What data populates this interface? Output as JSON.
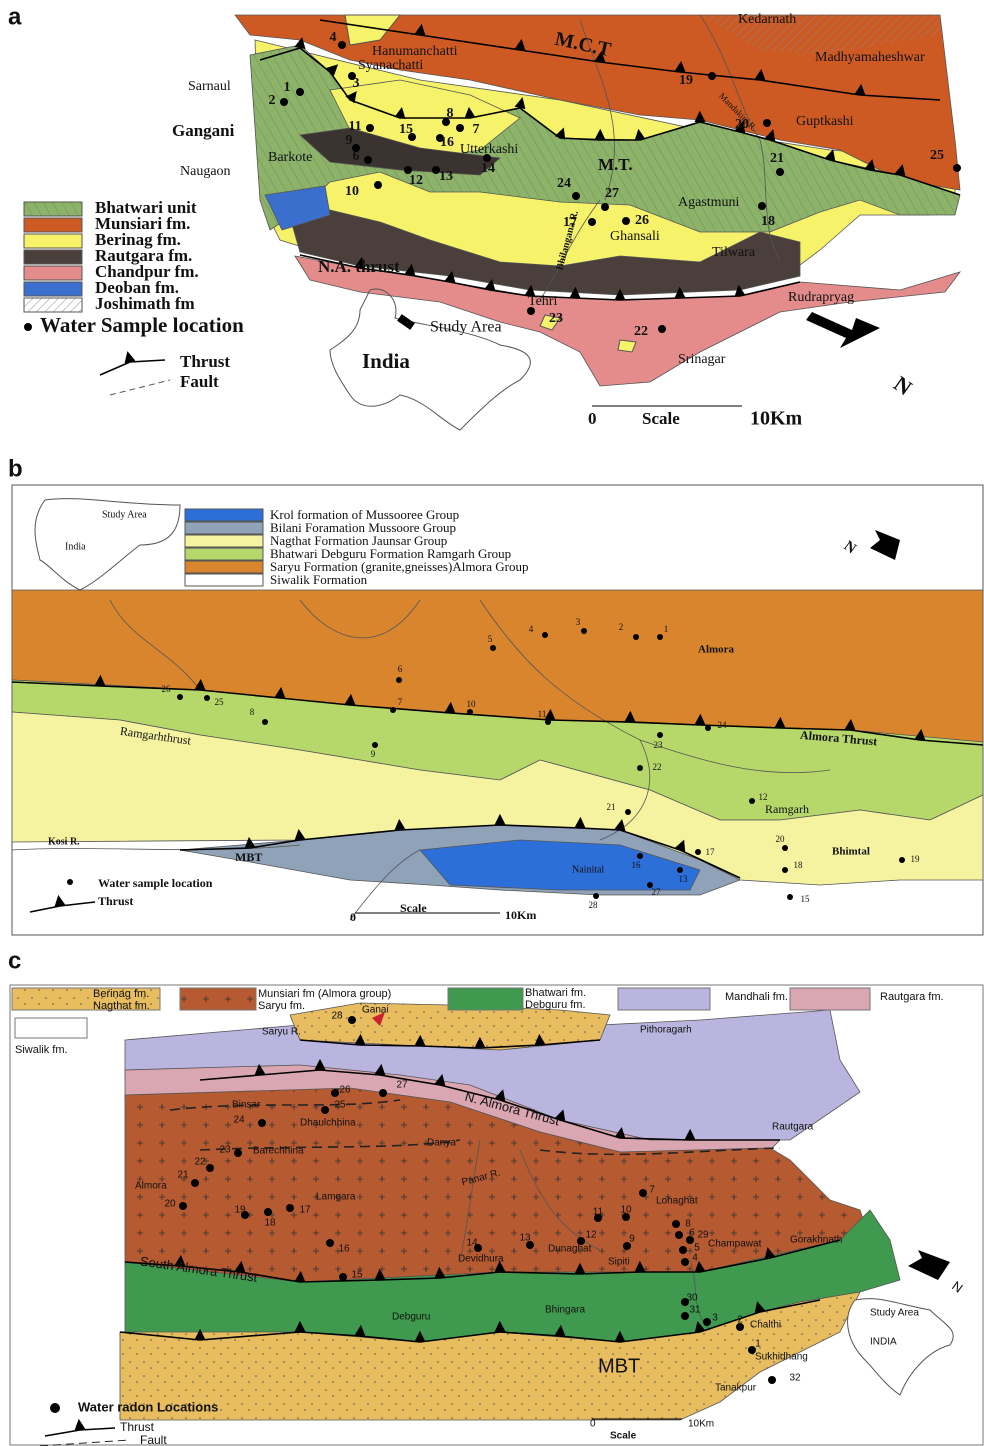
{
  "panel_a": {
    "label": "a",
    "legend": [
      "Bhatwari unit",
      "Munsiari fm.",
      "Berinag fm.",
      "Rautgara fm.",
      "Chandpur fm.",
      "Deoban fm.",
      "Joshimath fm",
      "Water Sample location",
      "Thrust",
      "Fault"
    ],
    "places": [
      "Kedarnath",
      "Madhyamaheshwar",
      "Hanumanchatti",
      "Syanachatti",
      "Sarnaul",
      "Gangani",
      "Barkote",
      "Naugaon",
      "Utterkashi",
      "Guptkashi",
      "Agastmuni",
      "Ghansali",
      "Tilwara",
      "Rudrapryag",
      "Tehri",
      "Srinagar",
      "Study Area",
      "India"
    ],
    "annotations": [
      "M.C.T",
      "M.T.",
      "N.A. thrust",
      "Bhilangana R.",
      "Mandakini R.",
      "0",
      "Scale",
      "10Km",
      "N"
    ],
    "samples": [
      "1",
      "2",
      "3",
      "4",
      "6",
      "7",
      "8",
      "9",
      "10",
      "11",
      "12",
      "13",
      "14",
      "15",
      "16",
      "17",
      "18",
      "19",
      "20",
      "21",
      "22",
      "23",
      "24",
      "25",
      "26",
      "27"
    ]
  },
  "panel_b": {
    "label": "b",
    "legend": [
      "Krol formation of Mussooree Group",
      "Bilani Foramation Mussoore Group",
      "Nagthat Formation Jaunsar Group",
      "Bhatwari Debguru Formation Ramgarh Group",
      "Saryu Formation (granite,gneisses)Almora Group",
      "Siwalik Formation",
      "Water sample location",
      "Thrust"
    ],
    "places": [
      "Study Area",
      "India",
      "Almora",
      "Ramgarh",
      "Bhimtal",
      "Nainital",
      "Kosi R."
    ],
    "annotations": [
      "Almora Thrust",
      "Ramgarhthrust",
      "MBT",
      "Scale",
      "0",
      "10Km",
      "N"
    ],
    "samples": [
      "1",
      "2",
      "3",
      "4",
      "5",
      "6",
      "7",
      "8",
      "9",
      "10",
      "11",
      "12",
      "13",
      "15",
      "16",
      "17",
      "18",
      "19",
      "20",
      "21",
      "22",
      "23",
      "24",
      "25",
      "26",
      "27",
      "28"
    ]
  },
  "panel_c": {
    "label": "c",
    "legend": [
      "Berinag fm.",
      "Nagthat fm.",
      "Munsiari fm (Almora group)",
      "Saryu fm.",
      "Bhatwari fm.",
      "Debguru fm.",
      "Mandhali fm.",
      "Rautgara fm.",
      "Siwalik fm.",
      "Water radon Locations",
      "Thrust",
      "Fault"
    ],
    "places": [
      "Ganai",
      "Saryu R.",
      "Pithoragarh",
      "Binsar",
      "Dhaulchhina",
      "Danya",
      "Rautgara",
      "Barechhina",
      "Almora",
      "Lamgara",
      "Lohaghat",
      "Champawat",
      "Gorakhnath",
      "Dunaghat",
      "Devidhura",
      "Sipiti",
      "Debguru",
      "Bhingara",
      "Chalthi",
      "Sukhidhang",
      "Tanakpur",
      "Study Area",
      "INDIA"
    ],
    "annotations": [
      "N. Almora Thrust",
      "South Almora Thrust",
      "Panar R.",
      "MBT",
      "0",
      "10Km",
      "Scale",
      "N"
    ],
    "samples": [
      "1",
      "2",
      "3",
      "4",
      "5",
      "6",
      "7",
      "8",
      "9",
      "10",
      "11",
      "12",
      "13",
      "14",
      "15",
      "16",
      "17",
      "18",
      "19",
      "20",
      "21",
      "22",
      "23",
      "24",
      "25",
      "26",
      "27",
      "28",
      "29",
      "30",
      "31",
      "32"
    ]
  }
}
